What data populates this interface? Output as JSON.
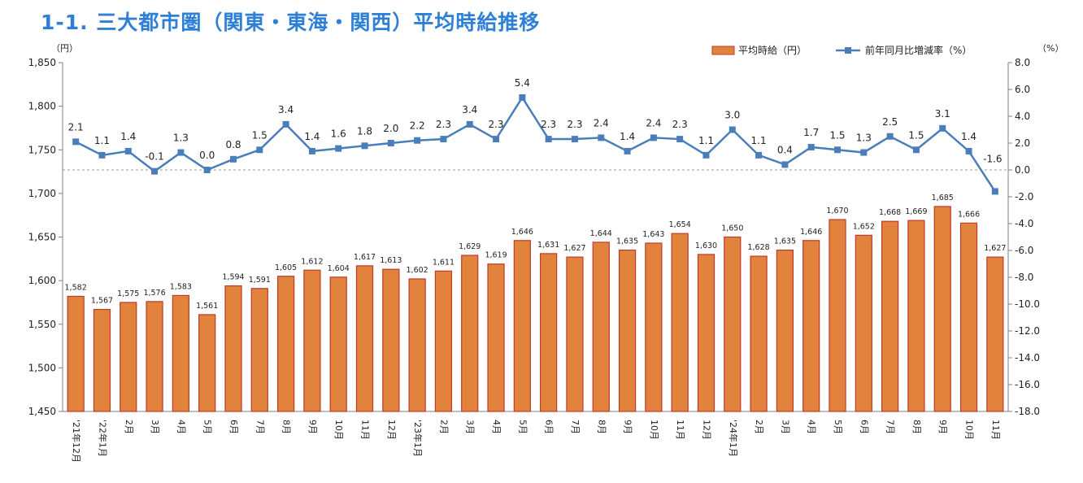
{
  "title": "1-1. 三大都市圏（関東・東海・関西）平均時給推移",
  "chart_data": {
    "type": "bar+line",
    "categories": [
      "'21年12月",
      "'22年1月",
      "2月",
      "3月",
      "4月",
      "5月",
      "6月",
      "7月",
      "8月",
      "9月",
      "10月",
      "11月",
      "12月",
      "'23年1月",
      "2月",
      "3月",
      "4月",
      "5月",
      "6月",
      "7月",
      "8月",
      "9月",
      "10月",
      "11月",
      "12月",
      "'24年1月",
      "2月",
      "3月",
      "4月",
      "5月",
      "6月",
      "7月",
      "8月",
      "9月",
      "10月",
      "11月"
    ],
    "series": [
      {
        "name": "平均時給（円）",
        "type": "bar",
        "axis": "left",
        "color": "#e1833d",
        "values": [
          1582,
          1567,
          1575,
          1576,
          1583,
          1561,
          1594,
          1591,
          1605,
          1612,
          1604,
          1617,
          1613,
          1602,
          1611,
          1629,
          1619,
          1646,
          1631,
          1627,
          1644,
          1635,
          1643,
          1654,
          1630,
          1650,
          1628,
          1635,
          1646,
          1670,
          1652,
          1668,
          1669,
          1685,
          1666,
          1627
        ],
        "labels": [
          "1,582",
          "1,567",
          "1,575",
          "1,576",
          "1,583",
          "1,561",
          "1,594",
          "1,591",
          "1,605",
          "1,612",
          "1,604",
          "1,617",
          "1,613",
          "1,602",
          "1,611",
          "1,629",
          "1,619",
          "1,646",
          "1,631",
          "1,627",
          "1,644",
          "1,635",
          "1,643",
          "1,654",
          "1,630",
          "1,650",
          "1,628",
          "1,635",
          "1,646",
          "1,670",
          "1,652",
          "1,668",
          "1,669",
          "1,685",
          "1,666",
          "1,627"
        ]
      },
      {
        "name": "前年同月比増減率（%）",
        "type": "line",
        "axis": "right",
        "color": "#4a7ebb",
        "values": [
          2.1,
          1.1,
          1.4,
          -0.1,
          1.3,
          0.0,
          0.8,
          1.5,
          3.4,
          1.4,
          1.6,
          1.8,
          2.0,
          2.2,
          2.3,
          3.4,
          2.3,
          5.4,
          2.3,
          2.3,
          2.4,
          1.4,
          2.4,
          2.3,
          1.1,
          3.0,
          1.1,
          0.4,
          1.7,
          1.5,
          1.3,
          2.5,
          1.5,
          3.1,
          1.4,
          -1.6
        ],
        "labels": [
          "2.1",
          "1.1",
          "1.4",
          "-0.1",
          "1.3",
          "0.0",
          "0.8",
          "1.5",
          "3.4",
          "1.4",
          "1.6",
          "1.8",
          "2.0",
          "2.2",
          "2.3",
          "3.4",
          "2.3",
          "5.4",
          "2.3",
          "2.3",
          "2.4",
          "1.4",
          "2.4",
          "2.3",
          "1.1",
          "3.0",
          "1.1",
          "0.4",
          "1.7",
          "1.5",
          "1.3",
          "2.5",
          "1.5",
          "3.1",
          "1.4",
          "-1.6"
        ]
      }
    ],
    "y_left": {
      "unit": "（円）",
      "min": 1450,
      "max": 1850,
      "ticks": [
        "1,450",
        "1,500",
        "1,550",
        "1,600",
        "1,650",
        "1,700",
        "1,750",
        "1,800",
        "1,850"
      ]
    },
    "y_right": {
      "unit": "（%）",
      "min": -18,
      "max": 8,
      "ticks": [
        "-18.0",
        "-16.0",
        "-14.0",
        "-12.0",
        "-10.0",
        "-8.0",
        "-6.0",
        "-4.0",
        "-2.0",
        "0.0",
        "2.0",
        "4.0",
        "6.0",
        "8.0"
      ]
    },
    "zero_line": "dashed",
    "legend_position": "top-right",
    "grid": false
  }
}
